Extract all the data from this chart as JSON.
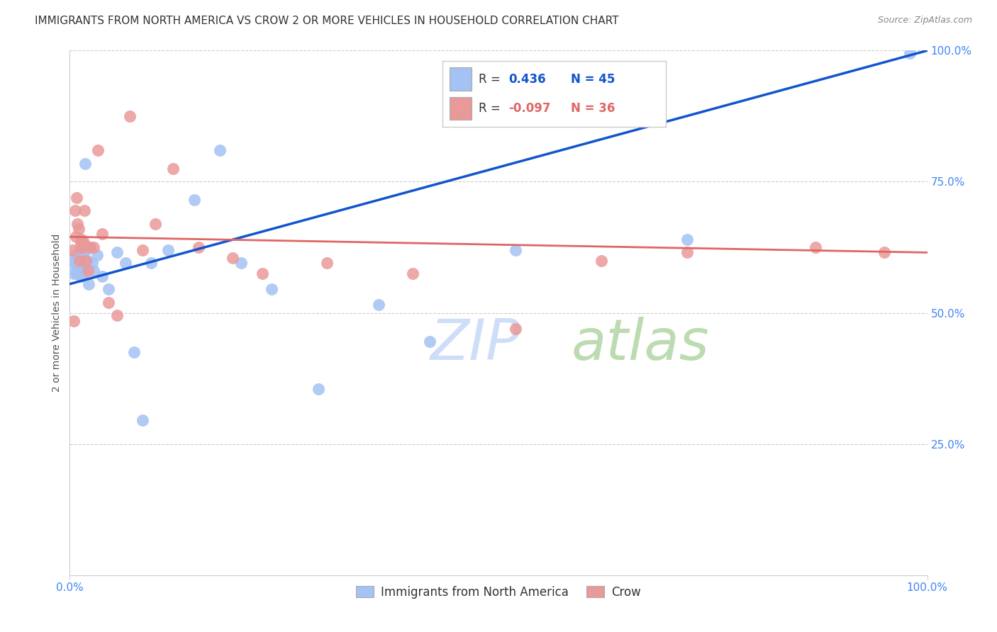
{
  "title": "IMMIGRANTS FROM NORTH AMERICA VS CROW 2 OR MORE VEHICLES IN HOUSEHOLD CORRELATION CHART",
  "source": "Source: ZipAtlas.com",
  "ylabel": "2 or more Vehicles in Household",
  "xlim": [
    0,
    1.0
  ],
  "ylim": [
    0,
    1.0
  ],
  "legend1_label": "Immigrants from North America",
  "legend2_label": "Crow",
  "R1": 0.436,
  "N1": 45,
  "R2": -0.097,
  "N2": 36,
  "blue_color": "#a4c2f4",
  "pink_color": "#ea9999",
  "blue_line_color": "#1155cc",
  "pink_line_color": "#e06666",
  "watermark_color_zip": "#c9daf8",
  "watermark_color_atlas": "#b6d7a8",
  "background_color": "#ffffff",
  "grid_color": "#cccccc",
  "blue_scatter_x": [
    0.004,
    0.005,
    0.006,
    0.007,
    0.008,
    0.008,
    0.009,
    0.009,
    0.01,
    0.01,
    0.011,
    0.011,
    0.012,
    0.013,
    0.013,
    0.014,
    0.015,
    0.015,
    0.016,
    0.017,
    0.018,
    0.02,
    0.022,
    0.024,
    0.026,
    0.028,
    0.032,
    0.038,
    0.045,
    0.055,
    0.065,
    0.075,
    0.085,
    0.095,
    0.115,
    0.145,
    0.175,
    0.2,
    0.235,
    0.29,
    0.36,
    0.42,
    0.52,
    0.72,
    0.98
  ],
  "blue_scatter_y": [
    0.595,
    0.575,
    0.61,
    0.595,
    0.575,
    0.605,
    0.605,
    0.58,
    0.59,
    0.61,
    0.6,
    0.585,
    0.595,
    0.57,
    0.6,
    0.595,
    0.605,
    0.585,
    0.575,
    0.615,
    0.785,
    0.6,
    0.555,
    0.625,
    0.595,
    0.58,
    0.61,
    0.57,
    0.545,
    0.615,
    0.595,
    0.425,
    0.295,
    0.595,
    0.62,
    0.715,
    0.81,
    0.595,
    0.545,
    0.355,
    0.515,
    0.445,
    0.62,
    0.64,
    0.995
  ],
  "pink_scatter_x": [
    0.003,
    0.005,
    0.006,
    0.007,
    0.008,
    0.009,
    0.01,
    0.011,
    0.012,
    0.013,
    0.014,
    0.015,
    0.016,
    0.017,
    0.019,
    0.021,
    0.024,
    0.028,
    0.033,
    0.038,
    0.045,
    0.055,
    0.07,
    0.085,
    0.1,
    0.12,
    0.15,
    0.19,
    0.225,
    0.3,
    0.4,
    0.52,
    0.62,
    0.72,
    0.87,
    0.95
  ],
  "pink_scatter_y": [
    0.62,
    0.485,
    0.695,
    0.645,
    0.72,
    0.67,
    0.66,
    0.6,
    0.625,
    0.635,
    0.64,
    0.625,
    0.635,
    0.695,
    0.6,
    0.58,
    0.625,
    0.625,
    0.81,
    0.65,
    0.52,
    0.495,
    0.875,
    0.62,
    0.67,
    0.775,
    0.625,
    0.605,
    0.575,
    0.595,
    0.575,
    0.47,
    0.6,
    0.615,
    0.625,
    0.615
  ],
  "blue_line_x0": 0.0,
  "blue_line_y0": 0.555,
  "blue_line_x1": 1.0,
  "blue_line_y1": 1.0,
  "pink_line_x0": 0.0,
  "pink_line_y0": 0.645,
  "pink_line_x1": 1.0,
  "pink_line_y1": 0.615,
  "title_fontsize": 11,
  "axis_label_fontsize": 10,
  "tick_fontsize": 11,
  "legend_fontsize": 13
}
